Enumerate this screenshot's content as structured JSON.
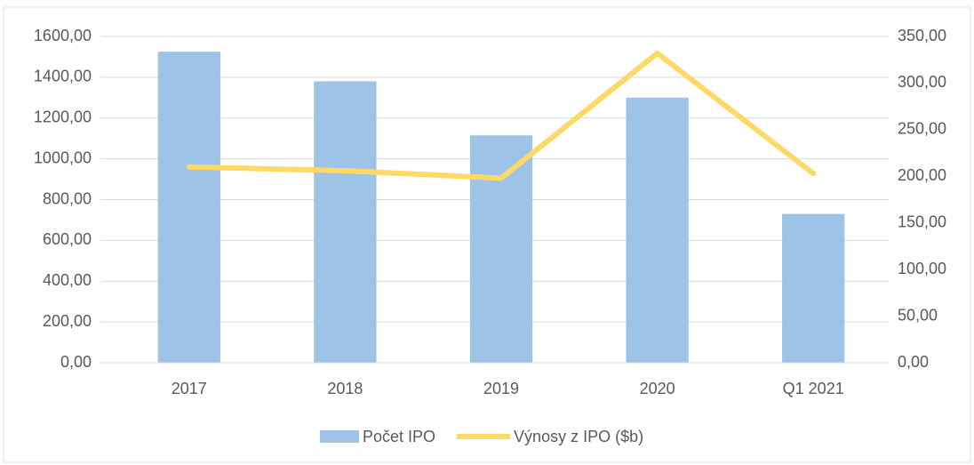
{
  "chart_data": {
    "type": "bar_line",
    "categories": [
      "2017",
      "2018",
      "2019",
      "2020",
      "Q1 2021"
    ],
    "series": [
      {
        "name": "Počet IPO",
        "type": "bar",
        "color": "#9dc3e6",
        "values": [
          1525,
          1380,
          1115,
          1300,
          730
        ]
      },
      {
        "name": "Výnosy z IPO ($b)",
        "type": "line",
        "axis": "y2",
        "color": "#ffd966",
        "values": [
          210,
          206,
          198,
          332,
          203
        ]
      }
    ],
    "ylim": [
      0,
      1600
    ],
    "yticks": [
      {
        "value": 0,
        "label": "0,00"
      },
      {
        "value": 200,
        "label": "200,00"
      },
      {
        "value": 400,
        "label": "400,00"
      },
      {
        "value": 600,
        "label": "600,00"
      },
      {
        "value": 800,
        "label": "800,00"
      },
      {
        "value": 1000,
        "label": "1000,00"
      },
      {
        "value": 1200,
        "label": "1200,00"
      },
      {
        "value": 1400,
        "label": "1400,00"
      },
      {
        "value": 1600,
        "label": "1600,00"
      }
    ],
    "y2lim": [
      0,
      350
    ],
    "y2ticks": [
      {
        "value": 0,
        "label": "0,00"
      },
      {
        "value": 50,
        "label": "50,00"
      },
      {
        "value": 100,
        "label": "100,00"
      },
      {
        "value": 150,
        "label": "150,00"
      },
      {
        "value": 200,
        "label": "200,00"
      },
      {
        "value": 250,
        "label": "250,00"
      },
      {
        "value": 300,
        "label": "300,00"
      },
      {
        "value": 350,
        "label": "350,00"
      }
    ],
    "grid": true,
    "legend": "bottom"
  }
}
